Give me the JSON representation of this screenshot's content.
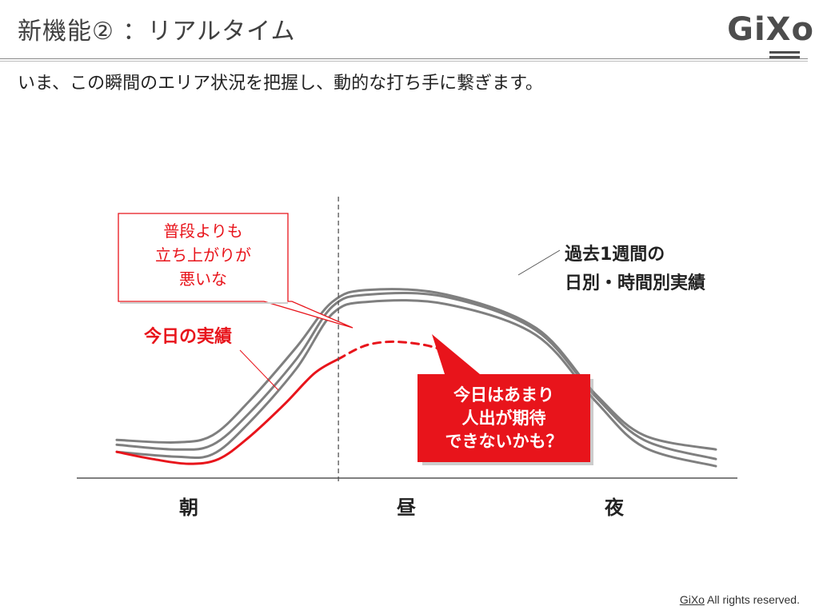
{
  "slide": {
    "title": "新機能② ：リアルタイム",
    "subtitle": "いま、この瞬間のエリア状況を把握し、動的な打ち手に繋ぎます。",
    "footer_brand": "GiXo",
    "footer_text": " All rights reserved.",
    "logo_text": "GiXo"
  },
  "colors": {
    "past": "#7f7f7f",
    "today": "#e8141b",
    "axis": "#555555",
    "text_dark": "#222222"
  },
  "chart_data": {
    "type": "line",
    "title": "",
    "xlabel": "",
    "ylabel": "",
    "categories": [
      "朝",
      "昼",
      "夜"
    ],
    "grid": false,
    "annotations": {
      "past_label_line1": "過去1週間の",
      "past_label_line2": "日別・時間別実績",
      "today_label": "今日の実績",
      "callout_line1": "普段よりも",
      "callout_line2": "立ち上がりが",
      "callout_line3": "悪いな",
      "forecast_line1": "今日はあまり",
      "forecast_line2": "人出が期待",
      "forecast_line3": "できないかも？"
    },
    "series": [
      {
        "name": "past-1",
        "style": "solid",
        "color": "past",
        "points": [
          [
            0.0,
            0.16
          ],
          [
            0.1,
            0.15
          ],
          [
            0.16,
            0.18
          ],
          [
            0.22,
            0.32
          ],
          [
            0.3,
            0.55
          ],
          [
            0.36,
            0.74
          ],
          [
            0.42,
            0.79
          ],
          [
            0.55,
            0.77
          ],
          [
            0.7,
            0.63
          ],
          [
            0.8,
            0.35
          ],
          [
            0.88,
            0.18
          ],
          [
            1.0,
            0.12
          ]
        ]
      },
      {
        "name": "past-2",
        "style": "solid",
        "color": "past",
        "points": [
          [
            0.0,
            0.14
          ],
          [
            0.1,
            0.12
          ],
          [
            0.16,
            0.14
          ],
          [
            0.22,
            0.27
          ],
          [
            0.3,
            0.5
          ],
          [
            0.36,
            0.72
          ],
          [
            0.42,
            0.77
          ],
          [
            0.55,
            0.76
          ],
          [
            0.7,
            0.62
          ],
          [
            0.8,
            0.34
          ],
          [
            0.88,
            0.16
          ],
          [
            1.0,
            0.08
          ]
        ]
      },
      {
        "name": "past-3",
        "style": "solid",
        "color": "past",
        "points": [
          [
            0.0,
            0.11
          ],
          [
            0.1,
            0.09
          ],
          [
            0.16,
            0.1
          ],
          [
            0.22,
            0.23
          ],
          [
            0.3,
            0.46
          ],
          [
            0.36,
            0.69
          ],
          [
            0.42,
            0.74
          ],
          [
            0.55,
            0.73
          ],
          [
            0.7,
            0.6
          ],
          [
            0.8,
            0.32
          ],
          [
            0.88,
            0.13
          ],
          [
            1.0,
            0.05
          ]
        ]
      },
      {
        "name": "today",
        "style": "solid",
        "color": "today",
        "points": [
          [
            0.0,
            0.11
          ],
          [
            0.06,
            0.08
          ],
          [
            0.12,
            0.06
          ],
          [
            0.17,
            0.08
          ],
          [
            0.22,
            0.17
          ],
          [
            0.28,
            0.31
          ],
          [
            0.33,
            0.44
          ],
          [
            0.37,
            0.5
          ]
        ]
      },
      {
        "name": "today-forecast",
        "style": "dashed",
        "color": "today",
        "points": [
          [
            0.37,
            0.5
          ],
          [
            0.42,
            0.56
          ],
          [
            0.48,
            0.57
          ],
          [
            0.55,
            0.53
          ],
          [
            0.61,
            0.41
          ]
        ]
      }
    ],
    "divider_at": 0.37
  }
}
